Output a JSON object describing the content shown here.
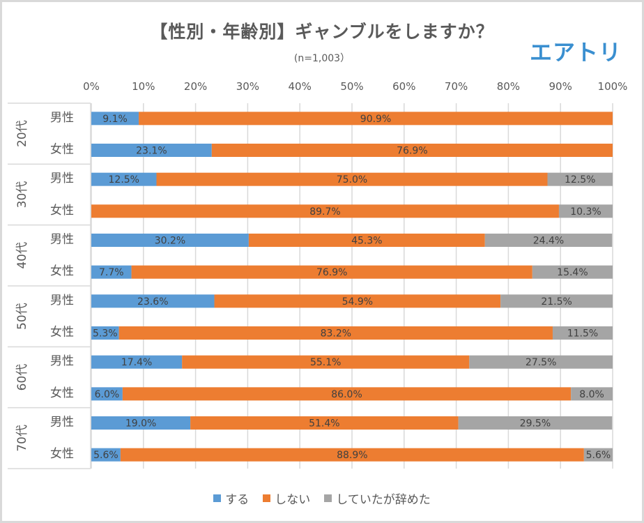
{
  "header": {
    "title": "【性別・年齢別】ギャンブルをしますか？",
    "subtitle": "(n=1,003）",
    "logo_text": "エアトリ"
  },
  "chart_data": {
    "type": "bar",
    "orientation": "horizontal",
    "stacked": "percent",
    "title": "【性別・年齢別】ギャンブルをしますか？",
    "subtitle": "(n=1,003）",
    "xlabel": "",
    "ylabel": "",
    "xlim": [
      0,
      100
    ],
    "x_ticks": [
      "0%",
      "10%",
      "20%",
      "30%",
      "40%",
      "50%",
      "60%",
      "70%",
      "80%",
      "90%",
      "100%"
    ],
    "grid": true,
    "legend_position": "bottom",
    "groups": [
      {
        "label": "20代",
        "rows": [
          "男性",
          "女性"
        ]
      },
      {
        "label": "30代",
        "rows": [
          "男性",
          "女性"
        ]
      },
      {
        "label": "40代",
        "rows": [
          "男性",
          "女性"
        ]
      },
      {
        "label": "50代",
        "rows": [
          "男性",
          "女性"
        ]
      },
      {
        "label": "60代",
        "rows": [
          "男性",
          "女性"
        ]
      },
      {
        "label": "70代",
        "rows": [
          "男性",
          "女性"
        ]
      }
    ],
    "categories": [
      "20代 男性",
      "20代 女性",
      "30代 男性",
      "30代 女性",
      "40代 男性",
      "40代 女性",
      "50代 男性",
      "50代 女性",
      "60代 男性",
      "60代 女性",
      "70代 男性",
      "70代 女性"
    ],
    "series": [
      {
        "name": "する",
        "color": "#5b9bd5",
        "values": [
          9.1,
          23.1,
          12.5,
          0,
          30.2,
          7.7,
          23.6,
          5.3,
          17.4,
          6.0,
          19.0,
          5.6
        ]
      },
      {
        "name": "しない",
        "color": "#ed7d31",
        "values": [
          90.9,
          76.9,
          75.0,
          89.7,
          45.3,
          76.9,
          54.9,
          83.2,
          55.1,
          86.0,
          51.4,
          88.9
        ]
      },
      {
        "name": "していたが辞めた",
        "color": "#a5a5a5",
        "values": [
          0,
          0,
          12.5,
          10.3,
          24.4,
          15.4,
          21.5,
          11.5,
          27.5,
          8.0,
          29.5,
          5.6
        ]
      }
    ]
  }
}
